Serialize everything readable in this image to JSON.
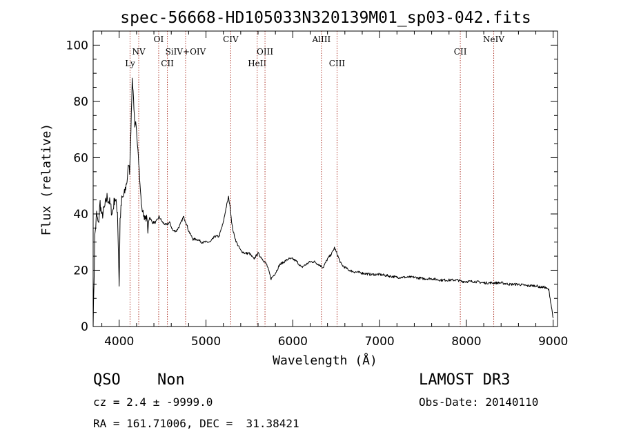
{
  "chart_data": {
    "type": "line",
    "title": "spec-56668-HD105033N320139M01_sp03-042.fits",
    "xlabel": "Wavelength (Å)",
    "ylabel": "Flux (relative)",
    "xlim": [
      3700,
      9050
    ],
    "ylim": [
      0,
      105
    ],
    "xticks": [
      "4000",
      "5000",
      "6000",
      "7000",
      "8000",
      "9000"
    ],
    "yticks": [
      "0",
      "20",
      "40",
      "60",
      "80",
      "100"
    ],
    "grid": false,
    "series": [
      {
        "name": "spectrum",
        "x": [
          3700,
          3720,
          3740,
          3760,
          3780,
          3800,
          3830,
          3860,
          3890,
          3920,
          3950,
          3980,
          4000,
          4010,
          4030,
          4060,
          4090,
          4110,
          4120,
          4130,
          4140,
          4150,
          4160,
          4170,
          4180,
          4190,
          4200,
          4220,
          4240,
          4260,
          4280,
          4300,
          4320,
          4330,
          4340,
          4350,
          4380,
          4420,
          4460,
          4500,
          4540,
          4580,
          4620,
          4660,
          4700,
          4740,
          4770,
          4800,
          4850,
          4900,
          4950,
          5000,
          5050,
          5100,
          5150,
          5200,
          5230,
          5260,
          5280,
          5300,
          5320,
          5350,
          5400,
          5450,
          5500,
          5550,
          5600,
          5650,
          5700,
          5750,
          5800,
          5850,
          5900,
          5950,
          6000,
          6050,
          6100,
          6150,
          6200,
          6250,
          6300,
          6350,
          6400,
          6450,
          6480,
          6520,
          6560,
          6600,
          6650,
          6700,
          6800,
          6900,
          7000,
          7100,
          7200,
          7300,
          7400,
          7500,
          7600,
          7700,
          7800,
          7900,
          7950,
          8000,
          8100,
          8200,
          8300,
          8400,
          8500,
          8600,
          8700,
          8800,
          8850,
          8900,
          8950,
          9000
        ],
        "y": [
          0,
          32,
          40,
          36,
          44,
          39,
          42,
          46,
          44,
          40,
          46,
          41,
          15,
          38,
          45,
          47,
          52,
          58,
          55,
          65,
          75,
          88,
          84,
          78,
          70,
          72,
          69,
          62,
          50,
          42,
          40,
          38,
          39,
          33,
          38,
          39,
          37,
          37,
          39,
          37,
          36,
          37,
          34,
          34,
          36,
          39,
          37,
          34,
          31,
          31,
          30,
          30,
          30,
          32,
          32,
          37,
          42,
          46,
          42,
          36,
          33,
          30,
          27,
          26,
          26,
          24,
          26,
          24,
          22,
          17,
          19,
          22,
          23,
          24,
          24,
          23,
          21,
          22,
          23,
          23,
          22,
          21,
          24,
          26,
          28,
          25,
          22,
          21,
          20,
          19.5,
          19,
          18.5,
          18.5,
          18,
          17.5,
          17.5,
          17.5,
          17,
          17,
          16.5,
          16.5,
          16.5,
          16,
          16,
          16,
          15.5,
          15.5,
          15.5,
          15,
          15,
          14.5,
          14.5,
          14,
          14,
          13,
          3
        ]
      }
    ],
    "lines": [
      {
        "name": "Ly",
        "x": 4125,
        "label_row": 3
      },
      {
        "name": "NV",
        "x": 4225,
        "label_row": 2
      },
      {
        "name": "OI",
        "x": 4455,
        "label_row": 1
      },
      {
        "name": "CII",
        "x": 4555,
        "label_row": 3
      },
      {
        "name": "SiIV+OIV",
        "x": 4765,
        "label_row": 2
      },
      {
        "name": "CIV",
        "x": 5285,
        "label_row": 1
      },
      {
        "name": "HeII",
        "x": 5590,
        "label_row": 3
      },
      {
        "name": "OIII",
        "x": 5680,
        "label_row": 2
      },
      {
        "name": "AlIII",
        "x": 6330,
        "label_row": 1
      },
      {
        "name": "CIII",
        "x": 6510,
        "label_row": 3
      },
      {
        "name": "CII",
        "x": 7930,
        "label_row": 2
      },
      {
        "name": "NeIV",
        "x": 8315,
        "label_row": 1
      }
    ],
    "colors": {
      "spectrum": "#000000",
      "lines": "#b03a2e"
    }
  },
  "info": {
    "class": "QSO",
    "subclass": "Non",
    "cz": "cz = 2.4 ± -9999.0",
    "coords": "RA = 161.71006, DEC =  31.38421",
    "survey": "LAMOST DR3",
    "obs_date": "Obs-Date: 20140110"
  }
}
